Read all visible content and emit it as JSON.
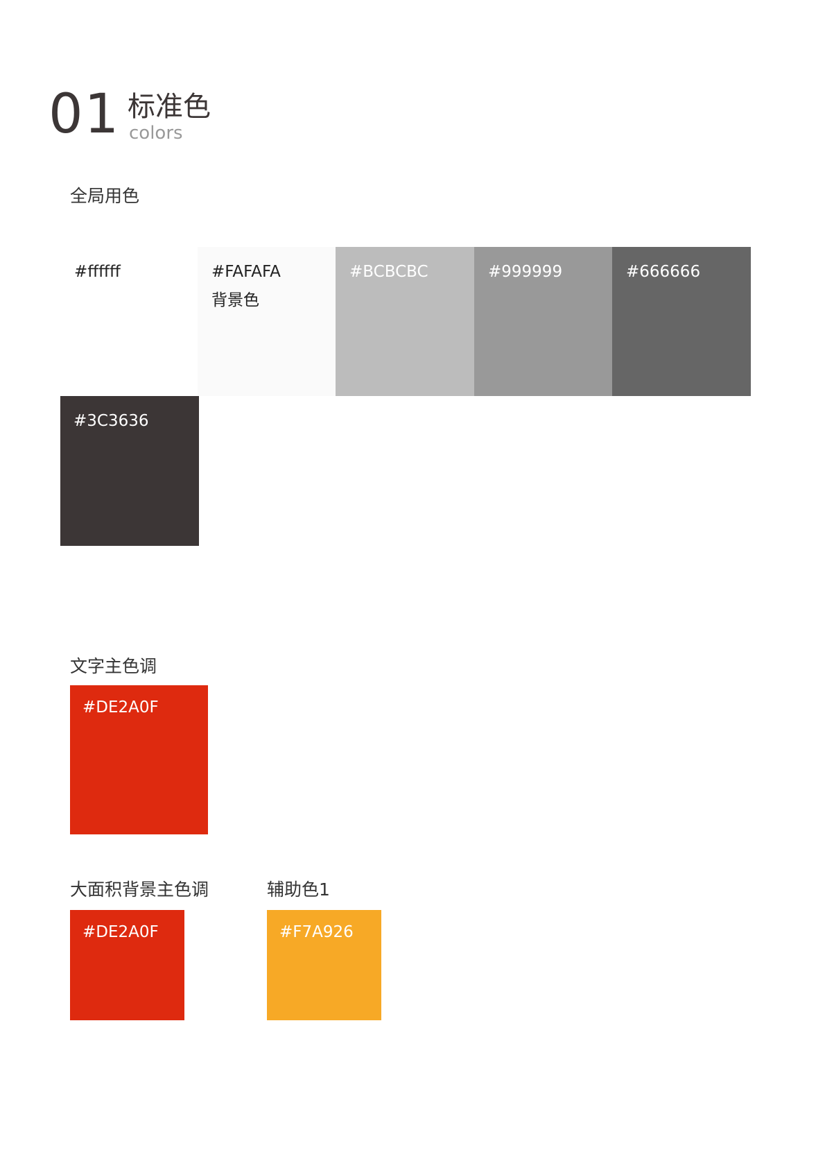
{
  "header": {
    "number": "01",
    "title": "标准色",
    "subtitle": "colors"
  },
  "global_colors": {
    "label": "全局用色",
    "swatches": [
      {
        "hex": "#ffffff",
        "note": "",
        "fill": "#ffffff",
        "text_color": "#222222"
      },
      {
        "hex": "#FAFAFA",
        "note": "背景色",
        "fill": "#FAFAFA",
        "text_color": "#222222"
      },
      {
        "hex": "#BCBCBC",
        "note": "",
        "fill": "#BCBCBC",
        "text_color": "#ffffff"
      },
      {
        "hex": "#999999",
        "note": "",
        "fill": "#999999",
        "text_color": "#ffffff"
      },
      {
        "hex": "#666666",
        "note": "",
        "fill": "#666666",
        "text_color": "#ffffff"
      },
      {
        "hex": "#3C3636",
        "note": "",
        "fill": "#3C3636",
        "text_color": "#ffffff"
      }
    ]
  },
  "text_primary": {
    "label": "文字主色调",
    "swatch": {
      "hex": "#DE2A0F",
      "fill": "#DE2A0F",
      "text_color": "#ffffff"
    }
  },
  "bg_primary": {
    "label": "大面积背景主色调",
    "swatch": {
      "hex": "#DE2A0F",
      "fill": "#DE2A0F",
      "text_color": "#ffffff"
    }
  },
  "auxiliary": {
    "label": "辅助色1",
    "swatch": {
      "hex": "#F7A926",
      "fill": "#F7A926",
      "text_color": "#ffffff"
    }
  }
}
